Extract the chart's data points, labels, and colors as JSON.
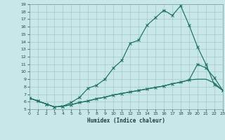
{
  "title": "",
  "xlabel": "Humidex (Indice chaleur)",
  "bg_color": "#c8e8e8",
  "line_color": "#1a7060",
  "grid_color": "#a8c8c8",
  "xlim": [
    0,
    23
  ],
  "ylim": [
    5,
    19
  ],
  "xticks": [
    0,
    1,
    2,
    3,
    4,
    5,
    6,
    7,
    8,
    9,
    10,
    11,
    12,
    13,
    14,
    15,
    16,
    17,
    18,
    19,
    20,
    21,
    22,
    23
  ],
  "yticks": [
    5,
    6,
    7,
    8,
    9,
    10,
    11,
    12,
    13,
    14,
    15,
    16,
    17,
    18,
    19
  ],
  "curve1_x": [
    0,
    1,
    2,
    3,
    4,
    5,
    6,
    7,
    8,
    9,
    10,
    11,
    12,
    13,
    14,
    15,
    16,
    17,
    18,
    19,
    20,
    21,
    22,
    23
  ],
  "curve1_y": [
    6.5,
    6.1,
    5.7,
    5.3,
    5.4,
    5.6,
    5.9,
    6.1,
    6.4,
    6.6,
    6.9,
    7.1,
    7.3,
    7.5,
    7.7,
    7.9,
    8.1,
    8.4,
    8.6,
    8.9,
    9.0,
    9.0,
    8.5,
    7.5
  ],
  "curve2_x": [
    0,
    1,
    2,
    3,
    4,
    5,
    6,
    7,
    8,
    9,
    10,
    11,
    12,
    13,
    14,
    15,
    16,
    17,
    18,
    19,
    20,
    21,
    22,
    23
  ],
  "curve2_y": [
    6.5,
    6.1,
    5.7,
    5.3,
    5.4,
    5.6,
    5.9,
    6.1,
    6.4,
    6.6,
    6.9,
    7.1,
    7.3,
    7.5,
    7.7,
    7.9,
    8.1,
    8.4,
    8.6,
    8.9,
    11.0,
    10.5,
    9.2,
    7.5
  ],
  "curve2_markers_x": [
    0,
    1,
    2,
    3,
    4,
    5,
    6,
    7,
    8,
    9,
    10,
    11,
    12,
    13,
    14,
    15,
    16,
    17,
    18,
    19,
    20,
    21,
    22,
    23
  ],
  "curve3_x": [
    0,
    1,
    2,
    3,
    4,
    5,
    6,
    7,
    8,
    9,
    10,
    11,
    12,
    13,
    14,
    15,
    16,
    17,
    18,
    19,
    20,
    21,
    22,
    23
  ],
  "curve3_y": [
    6.5,
    6.1,
    5.7,
    5.3,
    5.4,
    5.9,
    6.6,
    7.8,
    8.2,
    9.0,
    10.5,
    11.5,
    13.8,
    14.2,
    16.2,
    17.2,
    18.2,
    17.5,
    18.8,
    16.2,
    13.3,
    11.0,
    8.3,
    7.5
  ]
}
